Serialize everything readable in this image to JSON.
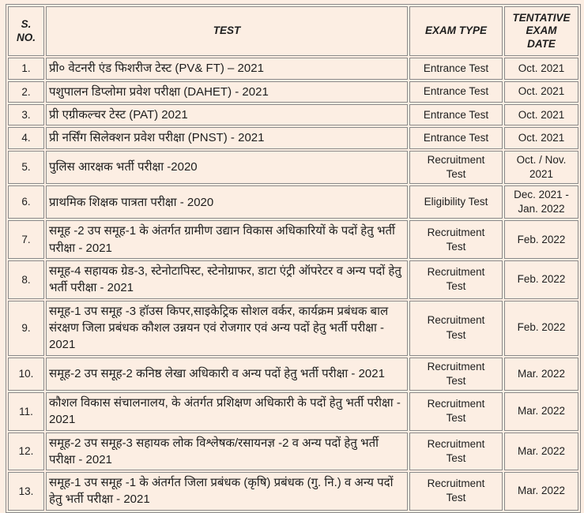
{
  "colors": {
    "background": "#fceee3",
    "border": "#8a8a8a",
    "text": "#1e1e1e"
  },
  "table": {
    "headers": {
      "sno": "S. NO.",
      "test": "TEST",
      "exam_type": "EXAM TYPE",
      "date": "TENTATIVE EXAM DATE"
    },
    "rows": [
      {
        "sno": "1.",
        "test": "प्री० वेटनरी एंड फिशरीज टेस्ट (PV& FT) – 2021",
        "exam_type": "Entrance Test",
        "date": "Oct. 2021"
      },
      {
        "sno": "2.",
        "test": "पशुपालन डिप्लोमा प्रवेश परीक्षा (DAHET) - 2021",
        "exam_type": "Entrance Test",
        "date": "Oct. 2021"
      },
      {
        "sno": "3.",
        "test": "प्री एग्रीकल्चर टेस्ट (PAT) 2021",
        "exam_type": "Entrance Test",
        "date": "Oct. 2021"
      },
      {
        "sno": "4.",
        "test": "प्री नर्सिंग सिलेक्शन प्रवेश परीक्षा (PNST) - 2021",
        "exam_type": "Entrance Test",
        "date": "Oct. 2021"
      },
      {
        "sno": "5.",
        "test": "पुलिस आरक्षक भर्ती परीक्षा -2020",
        "exam_type": "Recruitment Test",
        "date": "Oct. / Nov. 2021"
      },
      {
        "sno": "6.",
        "test": "प्राथमिक शिक्षक पात्रता परीक्षा - 2020",
        "exam_type": "Eligibility Test",
        "date": "Dec. 2021 - Jan. 2022"
      },
      {
        "sno": "7.",
        "test": "समूह -2 उप समूह-1 के अंतर्गत ग्रामीण उद्यान विकास अधिकारियों के पदों हेतु भर्ती परीक्षा - 2021",
        "exam_type": "Recruitment Test",
        "date": "Feb. 2022"
      },
      {
        "sno": "8.",
        "test": "समूह-4 सहायक ग्रेड-3, स्टेनोटापिस्ट, स्टेनोग्राफर, डाटा एंट्री ऑपरेटर व अन्य पदों हेतु भर्ती परीक्षा - 2021",
        "exam_type": "Recruitment Test",
        "date": "Feb. 2022"
      },
      {
        "sno": "9.",
        "test": "समूह-1 उप समूह -3 हॉउस किपर,साइकेट्रिक सोशल वर्कर, कार्यक्रम प्रबंधक बाल संरक्षण जिला प्रबंधक कौशल उन्नयन एवं रोजगार एवं अन्य पदों हेतु भर्ती परीक्षा - 2021",
        "exam_type": "Recruitment Test",
        "date": "Feb. 2022"
      },
      {
        "sno": "10.",
        "test": "समूह-2 उप समूह-2 कनिष्ठ लेखा अधिकारी व अन्य पदों हेतु भर्ती परीक्षा - 2021",
        "exam_type": "Recruitment Test",
        "date": "Mar. 2022"
      },
      {
        "sno": "11.",
        "test": "कौशल विकास संचालनालय, के अंतर्गत प्रशिक्षण अधिकारी के पदों हेतु भर्ती परीक्षा - 2021",
        "exam_type": "Recruitment Test",
        "date": "Mar. 2022"
      },
      {
        "sno": "12.",
        "test": "समूह-2 उप समूह-3 सहायक लोक विश्लेषक/रसायनज्ञ -2 व अन्य पदों हेतु भर्ती परीक्षा - 2021",
        "exam_type": "Recruitment Test",
        "date": "Mar. 2022"
      },
      {
        "sno": "13.",
        "test": "समूह-1 उप समूह -1 के अंतर्गत जिला प्रबंधक (कृषि) प्रबंधक (गु. नि.) व अन्य पदों हेतु भर्ती परीक्षा - 2021",
        "exam_type": "Recruitment Test",
        "date": "Mar. 2022"
      }
    ]
  }
}
